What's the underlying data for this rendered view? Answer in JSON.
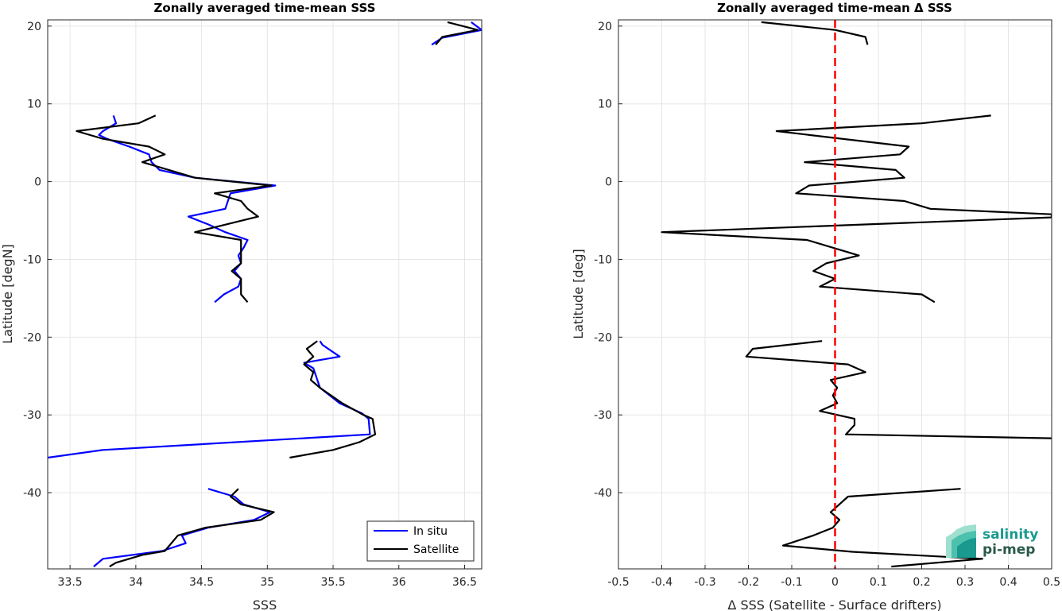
{
  "chart_data": [
    {
      "type": "line",
      "title": "Zonally averaged time-mean SSS",
      "xlabel": "SSS",
      "ylabel": "Latitude [degN]",
      "xlim": [
        33.33,
        36.63
      ],
      "ylim": [
        -49.8,
        20.8
      ],
      "xticks": [
        33.5,
        34,
        34.5,
        35,
        35.5,
        36,
        36.5
      ],
      "yticks": [
        -40,
        -30,
        -20,
        -10,
        0,
        10,
        20
      ],
      "grid": true,
      "legend": "bottom-right",
      "series": [
        {
          "name": "In situ",
          "color": "#0000ff",
          "segments": [
            [
              [
                36.55,
                20.5
              ],
              [
                36.63,
                19.5
              ],
              [
                36.33,
                18.5
              ],
              [
                36.25,
                17.6
              ]
            ],
            [
              [
                33.83,
                8.5
              ],
              [
                33.85,
                7.5
              ],
              [
                33.75,
                6.5
              ],
              [
                33.72,
                6.0
              ],
              [
                33.78,
                5.5
              ],
              [
                33.95,
                4.5
              ],
              [
                34.1,
                3.5
              ],
              [
                34.12,
                2.5
              ],
              [
                34.18,
                1.5
              ],
              [
                34.45,
                0.5
              ],
              [
                35.06,
                -0.5
              ],
              [
                34.72,
                -1.5
              ],
              [
                34.7,
                -2.5
              ],
              [
                34.68,
                -3.5
              ],
              [
                34.4,
                -4.5
              ],
              [
                34.55,
                -5.5
              ],
              [
                34.68,
                -6.5
              ],
              [
                34.85,
                -7.5
              ],
              [
                34.82,
                -8.5
              ],
              [
                34.78,
                -9.5
              ],
              [
                34.8,
                -10.5
              ],
              [
                34.75,
                -11.5
              ],
              [
                34.8,
                -12.5
              ],
              [
                34.78,
                -13.5
              ],
              [
                34.67,
                -14.5
              ],
              [
                34.6,
                -15.5
              ]
            ],
            [
              [
                35.4,
                -20.5
              ],
              [
                35.42,
                -21.0
              ],
              [
                35.55,
                -22.5
              ],
              [
                35.28,
                -23.3
              ],
              [
                35.35,
                -24.0
              ],
              [
                35.38,
                -25.5
              ],
              [
                35.4,
                -26.5
              ],
              [
                35.55,
                -28.5
              ],
              [
                35.72,
                -29.8
              ],
              [
                35.77,
                -30.5
              ],
              [
                35.78,
                -32.5
              ],
              [
                33.75,
                -34.5
              ],
              [
                33.33,
                -35.5
              ]
            ],
            [
              [
                34.55,
                -39.5
              ],
              [
                34.75,
                -40.5
              ],
              [
                34.82,
                -41.5
              ],
              [
                35.02,
                -42.5
              ],
              [
                34.9,
                -43.5
              ],
              [
                34.55,
                -44.5
              ],
              [
                34.35,
                -45.5
              ],
              [
                34.38,
                -46.5
              ],
              [
                34.2,
                -47.5
              ],
              [
                33.75,
                -48.5
              ],
              [
                33.68,
                -49.5
              ]
            ]
          ]
        },
        {
          "name": "Satellite",
          "color": "#000000",
          "segments": [
            [
              [
                36.37,
                20.5
              ],
              [
                36.6,
                19.5
              ],
              [
                36.33,
                18.6
              ],
              [
                36.28,
                17.6
              ]
            ],
            [
              [
                34.15,
                8.5
              ],
              [
                34.02,
                7.5
              ],
              [
                33.55,
                6.5
              ],
              [
                33.75,
                5.5
              ],
              [
                34.1,
                4.5
              ],
              [
                34.22,
                3.5
              ],
              [
                34.05,
                2.5
              ],
              [
                34.45,
                0.5
              ],
              [
                35.03,
                -0.5
              ],
              [
                34.6,
                -1.5
              ],
              [
                34.8,
                -2.5
              ],
              [
                34.85,
                -3.5
              ],
              [
                34.93,
                -4.5
              ],
              [
                34.45,
                -6.5
              ],
              [
                34.8,
                -7.5
              ],
              [
                34.8,
                -8.5
              ],
              [
                34.8,
                -10.5
              ],
              [
                34.73,
                -11.5
              ],
              [
                34.8,
                -12.5
              ],
              [
                34.8,
                -14.5
              ],
              [
                34.85,
                -15.5
              ]
            ],
            [
              [
                35.38,
                -20.5
              ],
              [
                35.3,
                -21.5
              ],
              [
                35.35,
                -22.5
              ],
              [
                35.28,
                -23.5
              ],
              [
                35.35,
                -24.5
              ],
              [
                35.33,
                -25.5
              ],
              [
                35.4,
                -26.5
              ],
              [
                35.57,
                -28.5
              ],
              [
                35.73,
                -30.0
              ],
              [
                35.8,
                -30.5
              ],
              [
                35.82,
                -32.5
              ],
              [
                35.7,
                -33.5
              ],
              [
                35.5,
                -34.5
              ],
              [
                35.17,
                -35.5
              ]
            ],
            [
              [
                34.78,
                -39.5
              ],
              [
                34.72,
                -40.5
              ],
              [
                34.8,
                -41.5
              ],
              [
                35.05,
                -42.5
              ],
              [
                34.95,
                -43.5
              ],
              [
                34.53,
                -44.5
              ],
              [
                34.32,
                -45.5
              ],
              [
                34.22,
                -47.5
              ],
              [
                34.05,
                -48.0
              ],
              [
                33.85,
                -49.0
              ],
              [
                33.8,
                -49.5
              ]
            ]
          ]
        }
      ]
    },
    {
      "type": "line",
      "title": "Zonally averaged time-mean Δ SSS",
      "xlabel": "Δ SSS (Satellite - Surface drifters)",
      "ylabel": "Latitude [deg]",
      "xlim": [
        -0.5,
        0.5
      ],
      "ylim": [
        -49.8,
        20.8
      ],
      "xticks": [
        -0.5,
        -0.4,
        -0.3,
        -0.2,
        -0.1,
        0,
        0.1,
        0.2,
        0.3,
        0.4,
        0.5
      ],
      "yticks": [
        -40,
        -30,
        -20,
        -10,
        0,
        10,
        20
      ],
      "grid": true,
      "reference_line": {
        "x": 0,
        "color": "#ff0000",
        "style": "dashed"
      },
      "series": [
        {
          "color": "#000000",
          "segments": [
            [
              [
                -0.17,
                20.5
              ],
              [
                0.0,
                19.5
              ],
              [
                0.07,
                18.6
              ],
              [
                0.075,
                17.6
              ]
            ],
            [
              [
                0.36,
                8.5
              ],
              [
                0.2,
                7.5
              ],
              [
                -0.135,
                6.5
              ],
              [
                0.17,
                4.5
              ],
              [
                0.15,
                3.5
              ],
              [
                -0.07,
                2.5
              ],
              [
                0.14,
                1.5
              ],
              [
                0.16,
                0.5
              ],
              [
                -0.06,
                -0.5
              ],
              [
                -0.09,
                -1.5
              ],
              [
                0.16,
                -2.5
              ],
              [
                0.22,
                -3.5
              ],
              [
                0.5,
                -4.2
              ],
              [
                0.5,
                -4.6
              ],
              [
                -0.4,
                -6.5
              ],
              [
                -0.065,
                -7.5
              ],
              [
                0.055,
                -9.5
              ],
              [
                -0.02,
                -10.5
              ],
              [
                -0.05,
                -11.5
              ],
              [
                0.0,
                -12.5
              ],
              [
                -0.035,
                -13.5
              ],
              [
                0.2,
                -14.5
              ],
              [
                0.23,
                -15.5
              ]
            ],
            [
              [
                -0.03,
                -20.5
              ],
              [
                -0.19,
                -21.5
              ],
              [
                -0.205,
                -22.5
              ],
              [
                0.03,
                -23.5
              ],
              [
                0.07,
                -24.5
              ],
              [
                -0.01,
                -25.5
              ],
              [
                0.005,
                -26.5
              ],
              [
                -0.005,
                -27.5
              ],
              [
                0.005,
                -28.5
              ],
              [
                -0.035,
                -29.5
              ],
              [
                0.045,
                -30.5
              ],
              [
                0.045,
                -31.3
              ],
              [
                0.025,
                -32.5
              ],
              [
                0.5,
                -33.0
              ]
            ],
            [
              [
                0.29,
                -39.5
              ],
              [
                0.03,
                -40.5
              ],
              [
                -0.01,
                -42.5
              ],
              [
                0.01,
                -43.5
              ],
              [
                -0.005,
                -44.5
              ],
              [
                -0.05,
                -45.5
              ],
              [
                -0.12,
                -46.8
              ],
              [
                0.04,
                -47.6
              ],
              [
                0.34,
                -48.5
              ],
              [
                0.13,
                -49.5
              ]
            ]
          ]
        }
      ]
    }
  ],
  "legend_labels": [
    "In situ",
    "Satellite"
  ],
  "logo": {
    "line1": "salinity",
    "line2": "pi-mep",
    "colors": [
      "#1a9a8e",
      "#2b5a4a",
      "#9edfcf"
    ]
  }
}
